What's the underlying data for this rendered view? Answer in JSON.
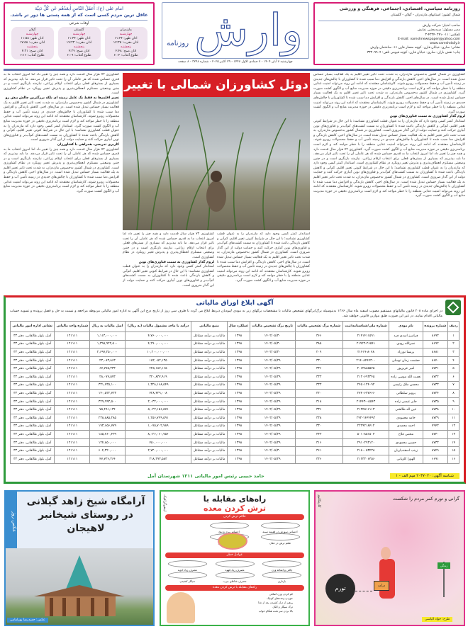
{
  "header": {
    "hadith_source": "امام علی (ع): أَعقَلُ النّاسِ أَبعَدُهُم عَن کُلِّ دَنِیَّة",
    "hadith_translation": "عاقل ترین مردم کسی است که از همه پستی ها دور تر باشد.",
    "prayer_title": "اوقات شرعی",
    "prayer_times": [
      {
        "province": "مازندران",
        "day1": "چهارشنبه",
        "l1": "اذان ظهر: ۱۱:۴۴",
        "l2": "اذان مغرب: ۱۷:۳۵",
        "day2": "پنجشنبه",
        "l3": "اذان صبح: ۴:۴۸",
        "l4": "طلوع آفتاب: ۶:۰۲"
      },
      {
        "province": "گلستان",
        "day1": "چهارشنبه",
        "l1": "اذان ظهر: ۱۱:۳۴",
        "l2": "اذان مغرب: ۱۷:۲۳",
        "day2": "پنجشنبه",
        "l3": "اذان صبح: ۴:۳۹",
        "l4": "طلوع آفتاب: ۶:۰۹"
      },
      {
        "province": "گیلان",
        "day1": "چهارشنبه",
        "l1": "اذان ظهر: ۱۱:۵۸",
        "l2": "اذان مغرب: ۱۷:۵۸",
        "day2": "پنجشنبه",
        "l3": "اذان صبح: ۴:۳۱",
        "l4": "طلوع آفتاب: ۶:۱۶"
      }
    ],
    "logo_text": "وارش",
    "logo_sub": "روزنامه",
    "date_line": "چهارشنبه ۷ آبان ۱۴۰۴ - ۷ جمادی الاول ۱۴۴۷ - ۲۹ اکتبر ۲۰۲۵ - شماره ۳۲۴۸ - ۸ صفحه",
    "paper_type": "روزنامه سیاسی، اقتصادی، اجتماعی، فرهنگی و ورزشی",
    "region": "شمال کشور؛ استانهای مازندران - گیلان - گلستان",
    "info": [
      "صاحب امتیاز: شرکت وارش",
      "مدیر مسئول: سیدمجتبی نمایش",
      "تلفکس: ۰۱۱-۴۳۲۴۰۲۴۱-۳",
      "E-mail: vareshnewspaper@yahoo.com",
      "www.vareshdaily.ir",
      "نشانی: ساری- خیابان قارن- کوچه معمار قارن ۱۶- ساختمان وارش",
      "چاپ: نقش باران- ساری- خیابان قارن- کوچه قیومی  تلفن: ۳۳۲۰۹۹۰۴"
    ]
  },
  "article": {
    "headline": "دوئل کشاورزان شمالی با تغییر اقلیم",
    "subhead1": "تغییر اقلیم‌ها نه فقط یک عامل زمینه ای بلکه بزرگترین چالش پیش رو",
    "subhead2": "کاربری تدریجی، همراهی با کشاورزان",
    "subhead3": "لزوم گذار کشاورزی به سمت فناوری‌های نوین",
    "p_right": "کشاورزی در شمال کشور به‌خصوص مازندران، به شدت تحت تاثیر تغییر اقلیم به یک فعالیت بسیار حساس تبدیل شده است. در سال‌های اخیر، کاهش بارندگی و افزایش دما سبب شده تا کشاورزان با چالش‌های جدیدی در زمینه تأمین آب و حفظ محصولات روبرو شوند. کارشناسان معتقدند که ادامه این روند می‌تواند امنیت غذایی منطقه را با خطر مواجه کند و لازم است برنامه‌ریزی دقیقی در حوزه مدیریت منابع آب و الگوی کشت صورت گیرد.",
    "p_left": "کشاورزی ۷۲ هزار سال قدمت دارد و همه چیز را تغییر داد اما امروز انتخاب ما به قدری حساس شده که هر عاملی آن را تحت تاثیر قرار می‌دهد. ما باید بپذیریم که بسیاری از بسترهای فعلی برای انتخاب ارقام زراعی، نیازمند بازنگری است و در چنین وضعیتی مستلزم انعطاف‌پذیری و پذیرش تغییر رویکرد در نظام کشاورزی است.",
    "p_bottom": "استاندار کمتر کسی وجود دارد که مازندران را به عنوان قطب کشاورزی نشناسد؛ با این حال در شرایط کنونی تغییر اقلیم، کم‌آبی و کاهش بارندگی باعث شده تا کشاورزان به سمت کشت‌های کم‌آب‌بر و فناوری‌های نوین آبیاری حرکت کنند و حمایت دولت از این گذار ضروری است."
  },
  "ad": {
    "title": "آگهی ابلاغ اوراق مالیاتی",
    "intro": "در اجرای ماده ۲۰۸ قانون مالیاتهای مستقیم مصوب اسفند ماه سال ۱۳۶۶ بدینوسیله برگ/برگهای تشخیص مالیات با مشخصات برگهای زیر به مودی /مودیان ذیربط ابلاغ می گردد تا ظرف سی روز از تاریخ درج این آگهی به اداره امور مالیاتی مربوطه مراجعه و نسبت به حل و فصل پرونده و تسویه حساب مالیاتی اقدام نمایند. در غیر این صورت طبق موازین قانونی خواهند شد.",
    "columns": [
      "ردیف",
      "شماره پرونده",
      "نام مودی",
      "شماره ملی/شناسنامه/ثبت",
      "شماره برگ تشخیص مالیات",
      "تاریخ برگ تشخیص مالیات",
      "عملکرد سال",
      "منبع مالیاتی",
      "درآمد یا ماخذ مشمول مالیات (به ریال)",
      "اصل مالیات به ریال",
      "شماره واحد مالیاتی",
      "نشانی اداره امور مالیاتی"
    ],
    "rows": [
      [
        "۱",
        "۸۶۹۳",
        "فرامرز اسدی فرد",
        "۲۱۴۱۴۱۱۵۹۱",
        "۳۶۶",
        "۱۴۰۲/۰۵/۳۰",
        "۱۳۹۸",
        "مالیات بر درآمد مشاغل",
        "۴,۷۶۰,۰۰۰,۰۰۰",
        "۱,۱۱۳,۰۰۰,۰۰۰",
        "۱۲۱۱۱۱",
        "آمل، بلوار طالقانی، دفتر ۳۳"
      ],
      [
        "۲",
        "۸۶۹۲",
        "نصرالله رودی",
        "۲۱۹۲۲-۲۶۵۴۱",
        "۳۸۵",
        "۱۴۰۲/۰۵/۳۰",
        "۱۳۹۸",
        "مالیات بر درآمد مشاغل",
        "۴,۲۹۰,۰۰۰,۰۰۰",
        "۱,۳۹۵,۹۲۲,۵۰۰",
        "۱۲۱۱۱۱",
        "آمل، بلوار طالقانی، دفتر ۳۳"
      ],
      [
        "۳",
        "۸۶۸۱",
        "پریسا نورزاد",
        "۲۱۴۱۹-۸۰۷۸",
        "۲۰۹",
        "۱۴۰۲/۰۵/۳۰",
        "۱۳۹۸",
        "مالیات بر درآمد مشاغل",
        "۱۰,۲۰۰,۰۰۰,۰۰۰",
        "۲,۶۹۷,۲۵۰,۰۰۰",
        "۱۲۱۱۱۱",
        "آمل، بلوار طالقانی، دفتر ۳۳"
      ],
      [
        "۴",
        "۸۶۴۰",
        "حشمت زمان توسلی",
        "۲۱۴۰۸۴۴۴۳۰۰",
        "۳۳۰",
        "۱۴۰۲/۰۵/۲۹",
        "۱۳۹۸",
        "مالیات بر درآمد مشاغل",
        "۱۵۲,۰۵۲,۱۳۵",
        "۲۳,۰۸۳,۸۶۳",
        "۱۲۱۱۱۱",
        "آمل، بلوار طالقانی، دفتر ۳۳"
      ],
      [
        "۵",
        "۸۷۳۱",
        "امیر عزیزپور",
        "۲۰۶۲۸۸۵۵۷۵",
        "۳۳۶",
        "۱۴۰۲/۰۵/۲۹",
        "۱۳۹۸",
        "مالیات بر درآمد مشاغل",
        "۴۲۵,۱۸۷,۱۶۵",
        "۶۷,۷۷۵,۳۳۳",
        "۱۲۱۱۱۱",
        "آمل، بلوار طالقانی، دفتر ۳۳"
      ],
      [
        "۶",
        "۸۷۳۲",
        "نعمت الله موسی زاده",
        "۲۱۲۰۶۹۳۳۴۵",
        "۳۳۳",
        "۱۴۰۲/۰۵/۲۹",
        "۱۳۹۸",
        "مالیات بر درآمد مشاغل",
        "۳۲۰,۸۳۷,۹۱۹",
        "۲۸,۰۷۷,۵۷۳",
        "۱۲۱۱۱۱",
        "آمل، بلوار طالقانی، دفتر ۳۳"
      ],
      [
        "۷",
        "۸۷۳۳",
        "محسن ملک رئیسی",
        "۲۴۵۰۱۲۴۰۹۲",
        "۳۳۳",
        "۱۴۰۲/۰۵/۲۹",
        "۱۳۹۸",
        "مالیات بر درآمد مشاغل",
        "۱,۳۲۸,۱۶۸,۵۴۹",
        "۳۳۱,۷۳۵,۱۰۰",
        "۱۲۱۱۱۱",
        "آمل، بلوار طالقانی، دفتر ۳۳"
      ],
      [
        "۸",
        "۸۷۳۴",
        "پرویز سلطانی",
        "۲۷۴۰۶۳۷۶۶۶",
        "۳۲۰",
        "۱۴۰۲/۰۵/۲۹",
        "۱۳۹۸",
        "مالیات بر درآمد مشاغل",
        "۷۲۸,۴۲۹,۰۰۸",
        "۱۴۰,۵۲۲,۷۲۳",
        "۱۲۱۱۱۱",
        "آمل، بلوار طالقانی، دفتر ۳۳"
      ],
      [
        "۹",
        "۸۷۳۵",
        "جابر عیسی زاده",
        "۲۱۴۴۳-۰۵۵۴۳",
        "۳۱۸",
        "۱۴۰۲/۰۵/۲۹",
        "۱۳۹۸",
        "مالیات بر درآمد مشاغل",
        "۲,۰۳۲,۰۰۰,۰۰۰",
        "۳۲۹,۹۹۳,۵۰۰",
        "۱۲۱۱۱۱",
        "آمل، بلوار طالقانی، دفتر ۳۳"
      ],
      [
        "۱۰",
        "۸۷۳۸",
        "عین اله طالشی",
        "۲۱۲۴۵۱۶۱۱۳",
        "۳۳۶",
        "۱۴۰۲/۰۵/۲۹",
        "۱۳۹۸",
        "مالیات بر درآمد مشاغل",
        "۵,۰۲۲,۱۵۶,۵۷۶",
        "۷۵,۴۹۱,۱۳۴",
        "۱۲۱۱۱۱",
        "آمل، بلوار طالقانی، دفتر ۳۳"
      ],
      [
        "۱۱",
        "۸۷۳۹",
        "حامد محمودی",
        "۲۹۲-۱۴۴۴۴۹۲",
        "۳۳۸",
        "۱۴۰۲/۰۵/۲۹",
        "۱۳۹۸",
        "مالیات بر درآمد مشاغل",
        "۱,۲۵۶,۷۹۹,۵۹۱",
        "۲۳۸,۸۸۵,۲۸۵",
        "۱۲۱۱۱۱",
        "آمل، بلوار طالقانی، دفتر ۳۳"
      ],
      [
        "۱۲",
        "۷۹۴۳",
        "احمد محمدی",
        "۲۲۲۹۲۱۸۴۱۲",
        "۳۳۰",
        "۱۴۰۲/۰۵/۲۹",
        "۱۳۹۸",
        "مالیات بر درآمد مشاغل",
        "۱,۰۷۵,۷۰۲,۷۸۹",
        "۱۹۳,۶۵۶,۷۷۹",
        "۱۲۱۱۱۱",
        "آمل، بلوار طالقانی، دفتر ۳۳"
      ],
      [
        "۱۳",
        "۸۷۳۰",
        "مجتبی فلاح",
        "۵۰۱۰۸۵۱۵۰۳",
        "۳۳۳",
        "۱۴۰۲/۰۵/۲۹",
        "۱۳۹۸",
        "مالیات بر درآمد مشاغل",
        "۸,۰۲۶,۰۶۰,۷۵۶",
        "۱۸۵,۷۶۰,۴۳۹",
        "۱۲۱۱۱۱",
        "آمل، بلوار طالقانی، دفتر ۳۳"
      ],
      [
        "۱۴",
        "۸۷۳۳",
        "حسین محمودی",
        "۲۹۱۰۲۹۳۱۲۰",
        "۳۱۶",
        "۱۴۰۲/۰۵/۲۹",
        "۱۳۹۸",
        "مالیات بر درآمد مشاغل",
        "۷۵۰,۰۰۰,۰۰۰",
        "۱۲۴,۸۵۰,۰۰۰",
        "۱۲۱۱۱۱",
        "آمل، بلوار طالقانی، دفتر ۳۳"
      ],
      [
        "۱۵",
        "۸۷۴۹",
        "زینب اسفندیاریان",
        "۲۱۸۰۰۵۳۴۳۸",
        "۳۶۱",
        "۱۴۰۲/۰۵/۳۰",
        "۱۳۹۸",
        "مالیات بر درآمد مشاغل",
        "۲,۷۲۰,۰۰۰,۰۰۰",
        "۶۰۴,۳۲۰,۰۰۰",
        "۱۲۱۱۱۱",
        "آمل، بلوار طالقانی، دفتر ۳۳"
      ],
      [
        "۱۶",
        "۶۶۹۱",
        "الهورا کاویانی",
        "۲۱۲۳۳۰۶۳۵۶",
        "۳۳۶",
        "۱۴۰۲/۰۵/۲۹",
        "۱۳۹۸",
        "مالیات بر درآمد مشاغل",
        "۳۱۸,۳۹۳,۵۸۳",
        "۴۷,۷۳۶,۳۶۴",
        "۱۲۱۱۱۱",
        "آمل، بلوار طالقانی، دفتر ۳۳"
      ]
    ],
    "ad_id": "شناسه آگهی: ۲۰۳۷۰۲۰ میم الف - ۱",
    "signature": "حامد حبیبی رئیس امور مالیاتی ۱۲۱۱ شهرستان آمل"
  },
  "photo_of_day": {
    "label": "عکس روز",
    "title": "آرامگاه شیخ زاهد گیلانی در روستای شیخانبر لاهیجان",
    "credit": "عکس: حمیدرضا پورامامی"
  },
  "infographic": {
    "label": "اینفوگرافیک",
    "title1": "راه‌های مقابله با",
    "title2": "ترش کردن معده",
    "section1": "علائم ترش کردن",
    "section2": "عوامل خطر",
    "section3": "راه‌های مقابله با ترش کردن معده",
    "symptoms": [
      "احساس سوزش در قفسه سینه",
      "احساس پری و نفخ",
      "طعم ترش در دهان",
      "سرفه و خشکی گلو"
    ],
    "risks": [
      "چاقی و اضافه وزن",
      "مصرف زیاد قهوه",
      "مصرف زیاد ادویه",
      "بارداری",
      "مصرف غذاهای چرب",
      "سیگار کشیدن"
    ],
    "tips": [
      "کم کردن وزن اضافی",
      "خوردن وعده‌های کوچک",
      "پرهیز از دراز کشیدن بعد از غذا",
      "ترک سیگار و الکل",
      "بالا بردن سر تخت هنگام خواب"
    ]
  },
  "cartoon": {
    "label": "کاریکاتور",
    "title": "گرانی و تورم کمر مردم را شکست",
    "ball": "تورم",
    "briefcase": "درآمد",
    "sign": "زندگی",
    "credit": "طرح: جواد الیاسی"
  },
  "colors": {
    "red": "#d71f26",
    "pink": "#d81b74",
    "green": "#2e9b3c",
    "blue": "#3a8ed0"
  }
}
